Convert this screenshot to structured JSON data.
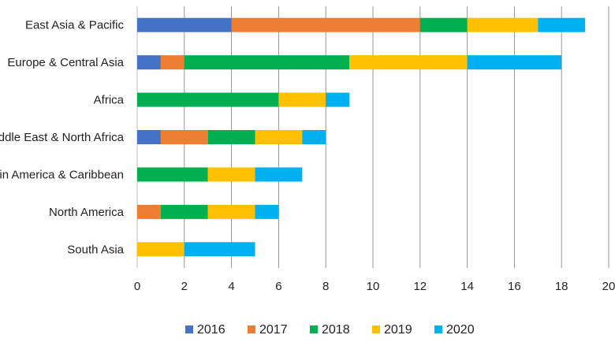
{
  "chart_data": {
    "type": "bar",
    "orientation": "horizontal",
    "stacked": true,
    "title": "",
    "xlabel": "",
    "ylabel": "",
    "categories": [
      "East Asia & Pacific",
      "Europe & Central Asia",
      "Africa",
      "Middle East & North Africa",
      "Latin America & Caribbean",
      "North America",
      "South Asia"
    ],
    "series": [
      {
        "name": "2016",
        "color": "#4472C4",
        "values": [
          4,
          1,
          0,
          1,
          0,
          0,
          0
        ]
      },
      {
        "name": "2017",
        "color": "#ED7D31",
        "values": [
          8,
          1,
          0,
          2,
          0,
          1,
          0
        ]
      },
      {
        "name": "2018",
        "color": "#00B050",
        "values": [
          2,
          7,
          6,
          2,
          3,
          2,
          0
        ]
      },
      {
        "name": "2019",
        "color": "#FFC000",
        "values": [
          3,
          5,
          2,
          2,
          2,
          2,
          2
        ]
      },
      {
        "name": "2020",
        "color": "#00B0F0",
        "values": [
          2,
          4,
          1,
          1,
          2,
          1,
          3
        ]
      }
    ],
    "xlim": [
      0,
      20
    ],
    "xticks": [
      0,
      2,
      4,
      6,
      8,
      10,
      12,
      14,
      16,
      18,
      20
    ],
    "grid": "vertical",
    "legend": "bottom"
  }
}
